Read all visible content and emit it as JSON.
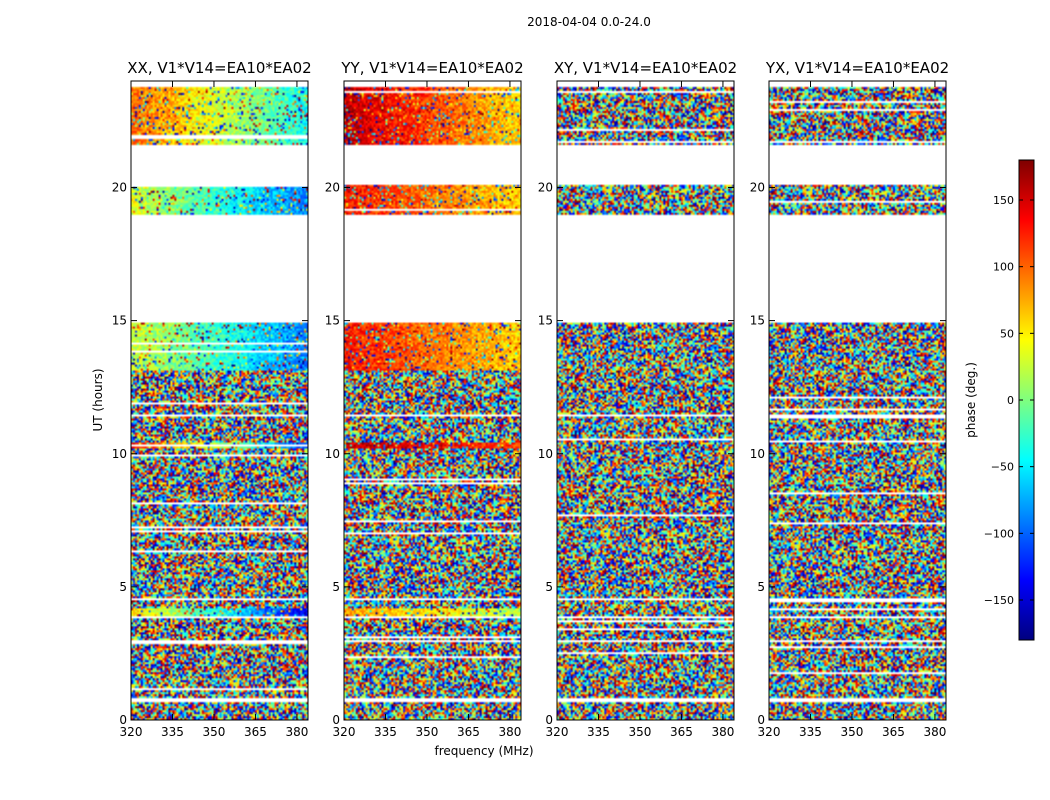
{
  "figure_title": "2018-04-04 0.0-24.0",
  "xlabel": "frequency (MHz)",
  "ylabel": "UT (hours)",
  "colorbar": {
    "label": "phase (deg.)",
    "range": [
      -180,
      180
    ],
    "ticks": [
      -150,
      -100,
      -50,
      0,
      50,
      100,
      150
    ],
    "tick_labels": [
      "−150",
      "−100",
      "−50",
      "0",
      "50",
      "100",
      "150"
    ],
    "colormap": "jet",
    "colors": [
      "#00007f",
      "#0000ff",
      "#007fff",
      "#00ffff",
      "#7fff7f",
      "#ffff00",
      "#ff7f00",
      "#ff0000",
      "#7f0000"
    ]
  },
  "chart_data": [
    {
      "type": "heatmap",
      "title": "XX, V1*V14=EA10*EA02",
      "x_ticks": [
        320,
        335,
        350,
        365,
        380
      ],
      "xlim": [
        320,
        384
      ],
      "y_ticks": [
        0,
        5,
        10,
        15,
        20
      ],
      "ylim": [
        0,
        24
      ],
      "value": "phase (deg.)",
      "observed_time_ranges": [
        [
          0.0,
          0.7
        ],
        [
          0.8,
          2.9
        ],
        [
          3.0,
          3.8
        ],
        [
          3.9,
          4.5
        ],
        [
          4.6,
          11.4
        ],
        [
          11.5,
          14.9
        ],
        [
          19.0,
          20.1
        ],
        [
          21.6,
          23.8
        ]
      ],
      "coherent_bands": [
        {
          "range": [
            3.9,
            4.2
          ],
          "phase_low_freq": 60,
          "phase_high_freq": -140
        },
        {
          "range": [
            10.2,
            10.4
          ],
          "phase_low_freq": 140,
          "phase_high_freq": -110
        },
        {
          "range": [
            13.1,
            14.9
          ],
          "phase_low_freq": 30,
          "phase_high_freq": -90
        },
        {
          "range": [
            19.0,
            20.1
          ],
          "phase_low_freq": 30,
          "phase_high_freq": -90
        },
        {
          "range": [
            21.6,
            23.8
          ],
          "phase_low_freq": 100,
          "phase_high_freq": -40
        }
      ]
    },
    {
      "type": "heatmap",
      "title": "YY, V1*V14=EA10*EA02",
      "x_ticks": [
        320,
        335,
        350,
        365,
        380
      ],
      "xlim": [
        320,
        384
      ],
      "y_ticks": [
        0,
        5,
        10,
        15,
        20
      ],
      "ylim": [
        0,
        24
      ],
      "value": "phase (deg.)",
      "observed_time_ranges": [
        [
          0.0,
          0.7
        ],
        [
          0.8,
          2.9
        ],
        [
          3.0,
          3.8
        ],
        [
          3.9,
          4.5
        ],
        [
          4.6,
          11.4
        ],
        [
          11.5,
          14.9
        ],
        [
          19.0,
          20.1
        ],
        [
          21.6,
          23.8
        ]
      ],
      "coherent_bands": [
        {
          "range": [
            3.9,
            4.2
          ],
          "phase_low_freq": 80,
          "phase_high_freq": 20
        },
        {
          "range": [
            10.2,
            10.4
          ],
          "phase_low_freq": 160,
          "phase_high_freq": 110
        },
        {
          "range": [
            13.1,
            14.9
          ],
          "phase_low_freq": 130,
          "phase_high_freq": 60
        },
        {
          "range": [
            19.0,
            20.1
          ],
          "phase_low_freq": 130,
          "phase_high_freq": 60
        },
        {
          "range": [
            21.6,
            23.8
          ],
          "phase_low_freq": 160,
          "phase_high_freq": 60
        }
      ]
    },
    {
      "type": "heatmap",
      "title": "XY, V1*V14=EA10*EA02",
      "x_ticks": [
        320,
        335,
        350,
        365,
        380
      ],
      "xlim": [
        320,
        384
      ],
      "y_ticks": [
        0,
        5,
        10,
        15,
        20
      ],
      "ylim": [
        0,
        24
      ],
      "value": "phase (deg.)",
      "observed_time_ranges": [
        [
          0.0,
          0.7
        ],
        [
          0.8,
          2.9
        ],
        [
          3.0,
          3.8
        ],
        [
          3.9,
          4.5
        ],
        [
          4.6,
          11.4
        ],
        [
          11.5,
          14.9
        ],
        [
          19.0,
          20.1
        ],
        [
          21.6,
          23.8
        ]
      ],
      "coherent_bands": []
    },
    {
      "type": "heatmap",
      "title": "YX, V1*V14=EA10*EA02",
      "x_ticks": [
        320,
        335,
        350,
        365,
        380
      ],
      "xlim": [
        320,
        384
      ],
      "y_ticks": [
        0,
        5,
        10,
        15,
        20
      ],
      "ylim": [
        0,
        24
      ],
      "value": "phase (deg.)",
      "observed_time_ranges": [
        [
          0.0,
          0.7
        ],
        [
          0.8,
          2.9
        ],
        [
          3.0,
          3.8
        ],
        [
          3.9,
          4.5
        ],
        [
          4.6,
          11.4
        ],
        [
          11.5,
          14.9
        ],
        [
          19.0,
          20.1
        ],
        [
          21.6,
          23.8
        ]
      ],
      "coherent_bands": []
    }
  ]
}
